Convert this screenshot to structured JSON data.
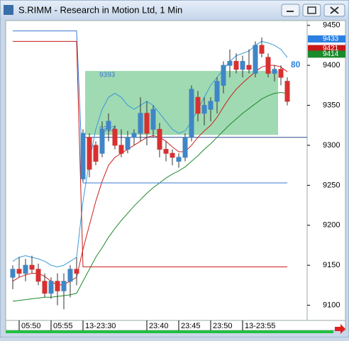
{
  "chart_data": {
    "type": "candlestick",
    "title": "S.RIMM - Research in Motion Ltd, 1 Min",
    "categories": [
      null,
      "05:50",
      null,
      null,
      null,
      null,
      "05:55",
      null,
      null,
      null,
      null,
      "13-23:30",
      null,
      null,
      null,
      null,
      null,
      null,
      null,
      null,
      null,
      "23:40",
      null,
      null,
      null,
      null,
      "23:45",
      null,
      null,
      null,
      null,
      "23:50",
      null,
      null,
      null,
      null,
      "13-23:55",
      null,
      null,
      null,
      null,
      null,
      null,
      null
    ],
    "open": [
      9135,
      9145,
      9140,
      9150,
      9145,
      9130,
      9115,
      9130,
      9118,
      9130,
      9145,
      9258,
      9310,
      9300,
      9290,
      9320,
      9320,
      9300,
      9295,
      9310,
      9315,
      9340,
      9320,
      9320,
      9295,
      9290,
      9280,
      9285,
      9310,
      9360,
      9340,
      9345,
      9355,
      9375,
      9400,
      9405,
      9395,
      9400,
      9390,
      9425,
      9410,
      9390,
      9395,
      9380
    ],
    "high": [
      9150,
      9160,
      9158,
      9162,
      9152,
      9140,
      9135,
      9140,
      9140,
      9150,
      9160,
      9320,
      9315,
      9305,
      9330,
      9340,
      9325,
      9320,
      9318,
      9320,
      9360,
      9355,
      9350,
      9328,
      9305,
      9295,
      9290,
      9315,
      9375,
      9368,
      9360,
      9360,
      9385,
      9405,
      9420,
      9415,
      9412,
      9420,
      9430,
      9435,
      9415,
      9400,
      9400,
      9385
    ],
    "low": [
      9120,
      9135,
      9130,
      9140,
      9125,
      9110,
      9108,
      9100,
      9095,
      9110,
      9125,
      9255,
      9260,
      9275,
      9285,
      9305,
      9295,
      9285,
      9290,
      9300,
      9305,
      9300,
      9310,
      9285,
      9280,
      9275,
      9272,
      9280,
      9305,
      9330,
      9325,
      9330,
      9340,
      9365,
      9385,
      9390,
      9385,
      9390,
      9385,
      9410,
      9385,
      9380,
      9375,
      9350
    ],
    "close": [
      9145,
      9140,
      9150,
      9145,
      9130,
      9115,
      9130,
      9118,
      9130,
      9145,
      9140,
      9315,
      9270,
      9280,
      9320,
      9330,
      9300,
      9290,
      9310,
      9315,
      9340,
      9315,
      9345,
      9295,
      9290,
      9285,
      9285,
      9310,
      9370,
      9340,
      9350,
      9355,
      9380,
      9400,
      9405,
      9395,
      9405,
      9395,
      9425,
      9415,
      9390,
      9395,
      9385,
      9355
    ],
    "up_color": "#3f86c6",
    "down_color": "#d83030",
    "overlays": [
      {
        "color": "#3a9ad9",
        "values": [
          9155,
          9160,
          9162,
          9160,
          9158,
          9155,
          9150,
          9148,
          9150,
          9155,
          9160,
          9230,
          9280,
          9320,
          9345,
          9360,
          9365,
          9360,
          9350,
          9345,
          9350,
          9355,
          9350,
          9340,
          9330,
          9320,
          9315,
          9318,
          9330,
          9345,
          9360,
          9375,
          9385,
          9395,
          9405,
          9412,
          9415,
          9418,
          9425,
          9430,
          9428,
          9425,
          9420,
          9410
        ]
      },
      {
        "color": "#cc2020",
        "values": [
          9130,
          9135,
          9138,
          9140,
          9140,
          9136,
          9130,
          9125,
          9126,
          9130,
          9135,
          9170,
          9200,
          9230,
          9255,
          9275,
          9285,
          9290,
          9295,
          9300,
          9305,
          9310,
          9312,
          9310,
          9305,
          9298,
          9292,
          9292,
          9300,
          9310,
          9318,
          9325,
          9335,
          9348,
          9360,
          9370,
          9378,
          9385,
          9392,
          9398,
          9400,
          9400,
          9398,
          9392
        ]
      },
      {
        "color": "#1f8a2a",
        "values": [
          9105,
          9106,
          9107,
          9108,
          9109,
          9110,
          9110,
          9111,
          9112,
          9113,
          9115,
          9130,
          9145,
          9160,
          9172,
          9185,
          9196,
          9206,
          9215,
          9224,
          9232,
          9240,
          9247,
          9253,
          9259,
          9264,
          9268,
          9273,
          9280,
          9287,
          9295,
          9302,
          9310,
          9318,
          9326,
          9333,
          9340,
          9346,
          9352,
          9358,
          9362,
          9365,
          9366,
          9365
        ]
      },
      {
        "color": "#3a78d0",
        "values": [
          9443,
          9443,
          9443,
          9443,
          9443,
          9443,
          9443,
          9443,
          9443,
          9443,
          9443,
          9253,
          9253,
          9253,
          9253,
          9253,
          9253,
          9253,
          9253,
          9253,
          9253,
          9253,
          9253,
          9253,
          9253,
          9253,
          9253,
          9253,
          9253,
          9253,
          9253,
          9253,
          9253,
          9253,
          9253,
          9253,
          9253,
          9253,
          9253,
          9253,
          9253,
          9253,
          9253,
          9253
        ]
      },
      {
        "color": "#c81818",
        "values": [
          9430,
          9430,
          9430,
          9430,
          9430,
          9430,
          9430,
          9430,
          9430,
          9430,
          9430,
          9148,
          9148,
          9148,
          9148,
          9148,
          9148,
          9148,
          9148,
          9148,
          9148,
          9148,
          9148,
          9148,
          9148,
          9148,
          9148,
          9148,
          9148,
          9148,
          9148,
          9148,
          9148,
          9148,
          9148,
          9148,
          9148,
          9148,
          9148,
          9148,
          9148,
          9148,
          9148,
          9148
        ]
      }
    ],
    "zone": [
      9313,
      9393
    ],
    "zone_color": "#8fd3a4",
    "support": 9310,
    "annotation": "80",
    "price_tags": [
      {
        "value": 9433,
        "color": "#2a7fe0"
      },
      {
        "value": 9421,
        "color": "#c81818"
      },
      {
        "value": 9414,
        "color": "#1a8a2a"
      }
    ],
    "ylim": [
      9081,
      9456
    ],
    "yticks": [
      9100,
      9150,
      9200,
      9250,
      9300,
      9350,
      9400,
      9450
    ]
  }
}
